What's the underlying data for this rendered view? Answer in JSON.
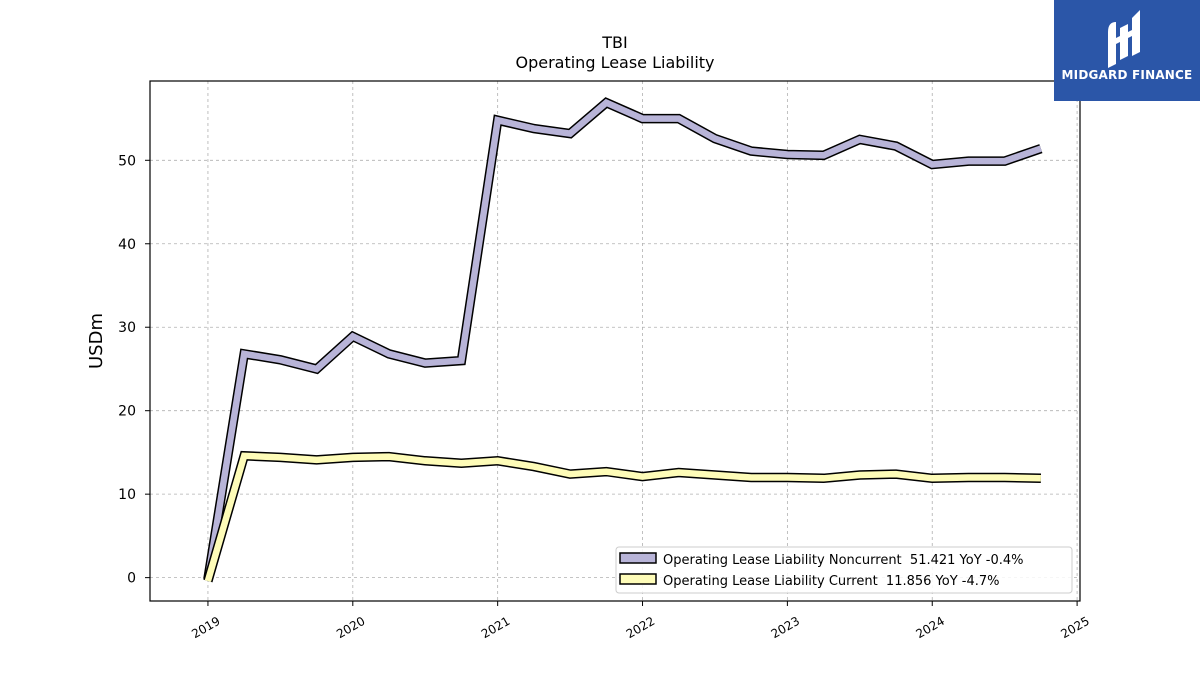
{
  "brand": {
    "name": "MIDGARD FINANCE",
    "color": "#2b56a8"
  },
  "chart_data": {
    "type": "line",
    "title": "TBI",
    "subtitle": "Operating Lease Liability",
    "ylabel": "USDm",
    "xlabel": "",
    "ylim": [
      -2.8,
      59.5
    ],
    "xlim": [
      2018.6,
      2025.02
    ],
    "yticks": [
      0,
      10,
      20,
      30,
      40,
      50
    ],
    "xticks": [
      "2019",
      "2020",
      "2021",
      "2022",
      "2023",
      "2024",
      "2025"
    ],
    "grid": true,
    "legend_position": "lower-right",
    "x": [
      2019.0,
      2019.25,
      2019.5,
      2019.75,
      2020.0,
      2020.25,
      2020.5,
      2020.75,
      2021.0,
      2021.25,
      2021.5,
      2021.75,
      2022.0,
      2022.25,
      2022.5,
      2022.75,
      2023.0,
      2023.25,
      2023.5,
      2023.75,
      2024.0,
      2024.25,
      2024.5,
      2024.75
    ],
    "series": [
      {
        "name": "Operating Lease Liability Noncurrent",
        "legend": "Operating Lease Liability Noncurrent  51.421 YoY -0.4%",
        "color": "#b8b4d8",
        "values": [
          -0.2,
          26.8,
          26.1,
          25.0,
          28.9,
          26.8,
          25.7,
          26.0,
          54.8,
          53.8,
          53.2,
          56.9,
          55.0,
          55.0,
          52.6,
          51.1,
          50.7,
          50.6,
          52.5,
          51.7,
          49.5,
          49.9,
          49.9,
          51.4
        ]
      },
      {
        "name": "Operating Lease Liability Current",
        "legend": "Operating Lease Liability Current  11.856 YoY -4.7%",
        "color": "#fefcb8",
        "values": [
          -0.4,
          14.6,
          14.4,
          14.1,
          14.4,
          14.5,
          14.0,
          13.7,
          14.0,
          13.3,
          12.4,
          12.7,
          12.1,
          12.6,
          12.3,
          12.0,
          12.0,
          11.9,
          12.3,
          12.4,
          11.9,
          12.0,
          12.0,
          11.9
        ]
      }
    ]
  }
}
